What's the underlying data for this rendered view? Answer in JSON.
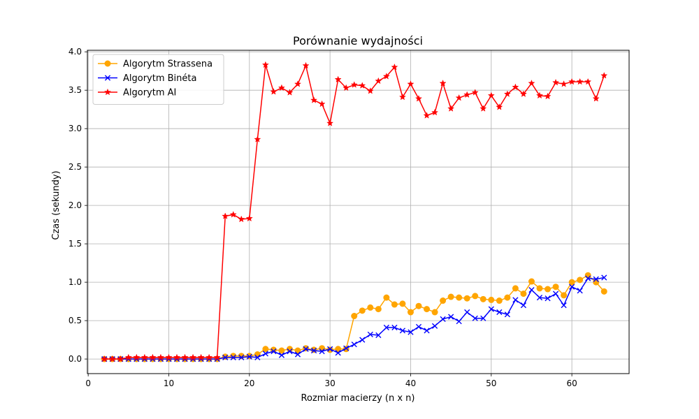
{
  "chart_data": {
    "type": "line",
    "title": "Porównanie wydajności",
    "xlabel": "Rozmiar macierzy (n x n)",
    "ylabel": "Czas (sekundy)",
    "xlim": [
      -0.1,
      67.1
    ],
    "ylim": [
      -0.19,
      4.02
    ],
    "xticks": [
      0,
      10,
      20,
      30,
      40,
      50,
      60
    ],
    "yticks": [
      0.0,
      0.5,
      1.0,
      1.5,
      2.0,
      2.5,
      3.0,
      3.5,
      4.0
    ],
    "ytick_labels": [
      "0.0",
      "0.5",
      "1.0",
      "1.5",
      "2.0",
      "2.5",
      "3.0",
      "3.5",
      "4.0"
    ],
    "grid": true,
    "legend_position": "upper-left",
    "x": [
      2,
      3,
      4,
      5,
      6,
      7,
      8,
      9,
      10,
      11,
      12,
      13,
      14,
      15,
      16,
      17,
      18,
      19,
      20,
      21,
      22,
      23,
      24,
      25,
      26,
      27,
      28,
      29,
      30,
      31,
      32,
      33,
      34,
      35,
      36,
      37,
      38,
      39,
      40,
      41,
      42,
      43,
      44,
      45,
      46,
      47,
      48,
      49,
      50,
      51,
      52,
      53,
      54,
      55,
      56,
      57,
      58,
      59,
      60,
      61,
      62,
      63,
      64
    ],
    "series": [
      {
        "name": "Algorytm Strassena",
        "color": "#ffa500",
        "marker": "circle",
        "values": [
          0.0,
          0.0,
          0.0,
          0.0,
          0.0,
          0.0,
          0.0,
          0.0,
          0.0,
          0.0,
          0.0,
          0.0,
          0.0,
          0.0,
          0.0,
          0.03,
          0.04,
          0.04,
          0.04,
          0.06,
          0.13,
          0.12,
          0.11,
          0.13,
          0.11,
          0.14,
          0.12,
          0.14,
          0.12,
          0.13,
          0.13,
          0.56,
          0.63,
          0.67,
          0.65,
          0.8,
          0.71,
          0.72,
          0.61,
          0.69,
          0.65,
          0.61,
          0.76,
          0.81,
          0.8,
          0.79,
          0.82,
          0.78,
          0.77,
          0.76,
          0.8,
          0.92,
          0.85,
          1.01,
          0.92,
          0.91,
          0.94,
          0.83,
          1.0,
          1.03,
          1.09,
          1.0,
          0.88
        ]
      },
      {
        "name": "Algorytm Binéta",
        "color": "#0000ff",
        "marker": "x",
        "values": [
          0.0,
          0.0,
          0.0,
          0.0,
          0.0,
          0.0,
          0.0,
          0.0,
          0.0,
          0.0,
          0.0,
          0.0,
          0.0,
          0.0,
          0.0,
          0.02,
          0.02,
          0.02,
          0.03,
          0.02,
          0.07,
          0.1,
          0.05,
          0.1,
          0.06,
          0.13,
          0.11,
          0.1,
          0.13,
          0.08,
          0.14,
          0.19,
          0.25,
          0.32,
          0.31,
          0.41,
          0.41,
          0.37,
          0.35,
          0.42,
          0.37,
          0.43,
          0.52,
          0.55,
          0.49,
          0.61,
          0.53,
          0.53,
          0.65,
          0.61,
          0.58,
          0.77,
          0.7,
          0.9,
          0.8,
          0.79,
          0.85,
          0.7,
          0.94,
          0.89,
          1.05,
          1.04,
          1.06
        ]
      },
      {
        "name": "Algorytm AI",
        "color": "#ff0000",
        "marker": "star",
        "values": [
          0.0,
          0.0,
          0.0,
          0.02,
          0.02,
          0.02,
          0.02,
          0.02,
          0.02,
          0.02,
          0.02,
          0.02,
          0.02,
          0.02,
          0.02,
          1.86,
          1.88,
          1.82,
          1.83,
          2.86,
          3.83,
          3.48,
          3.53,
          3.47,
          3.58,
          3.82,
          3.37,
          3.32,
          3.07,
          3.64,
          3.53,
          3.57,
          3.56,
          3.49,
          3.62,
          3.68,
          3.8,
          3.41,
          3.58,
          3.39,
          3.17,
          3.21,
          3.59,
          3.26,
          3.4,
          3.44,
          3.47,
          3.26,
          3.43,
          3.28,
          3.45,
          3.54,
          3.45,
          3.59,
          3.43,
          3.42,
          3.6,
          3.58,
          3.61,
          3.61,
          3.61,
          3.39,
          3.69
        ]
      }
    ]
  }
}
